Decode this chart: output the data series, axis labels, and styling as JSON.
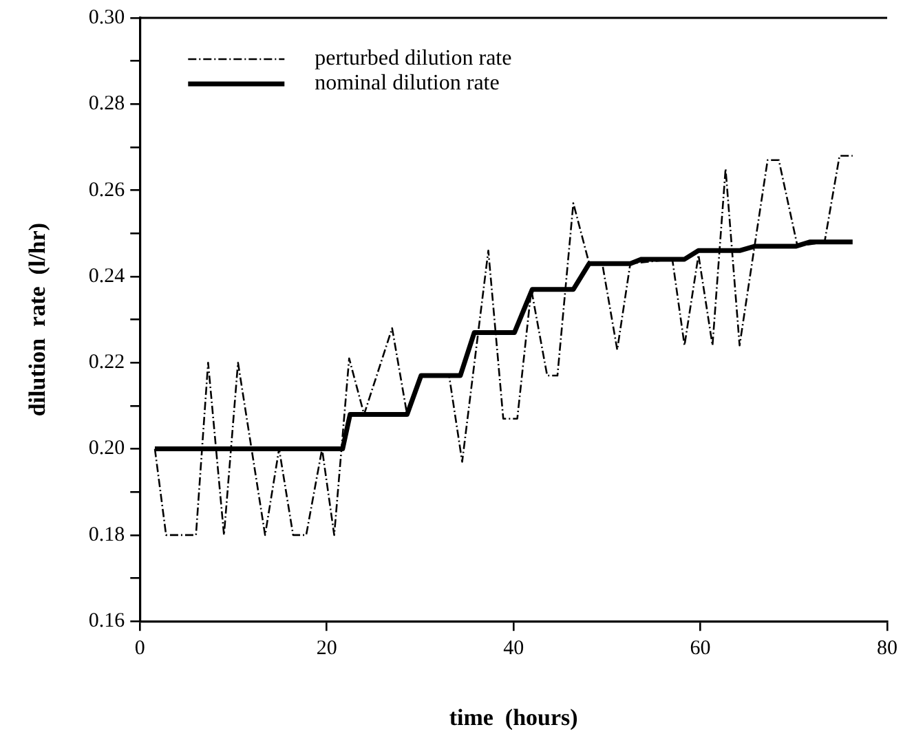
{
  "chart_data": {
    "type": "line",
    "xlabel": "time  (hours)",
    "ylabel": "dilution  rate  (l/hr)",
    "xlim": [
      0,
      80
    ],
    "xticks": [
      0,
      20,
      40,
      60,
      80
    ],
    "ylim": [
      0.16,
      0.3
    ],
    "yticks": [
      {
        "value": 0.16,
        "label": "0.16"
      },
      {
        "value": 0.17,
        "label": null
      },
      {
        "value": 0.18,
        "label": "0.18"
      },
      {
        "value": 0.19,
        "label": null
      },
      {
        "value": 0.2,
        "label": "0.20"
      },
      {
        "value": 0.21,
        "label": null
      },
      {
        "value": 0.22,
        "label": "0.22"
      },
      {
        "value": 0.23,
        "label": null
      },
      {
        "value": 0.24,
        "label": "0.24"
      },
      {
        "value": 0.25,
        "label": null
      },
      {
        "value": 0.26,
        "label": "0.26"
      },
      {
        "value": 0.27,
        "label": null
      },
      {
        "value": 0.28,
        "label": "0.28"
      },
      {
        "value": 0.29,
        "label": null
      },
      {
        "value": 0.3,
        "label": "0.30"
      }
    ],
    "grid": false,
    "legend": "top left",
    "marker": "none",
    "series": [
      {
        "name": "perturbed dilution rate",
        "color": "#000000",
        "line_style": "dashed",
        "x": [
          1.6,
          2.8,
          6.0,
          7.3,
          9.0,
          10.5,
          13.4,
          14.9,
          16.4,
          17.8,
          19.5,
          20.8,
          22.4,
          24.0,
          27.0,
          28.6,
          30.1,
          33.1,
          34.5,
          37.3,
          38.9,
          40.4,
          41.9,
          43.6,
          44.7,
          46.4,
          48.1,
          49.5,
          51.1,
          52.5,
          57.0,
          58.3,
          59.8,
          61.3,
          62.7,
          64.2,
          65.8,
          67.2,
          68.4,
          70.4,
          73.3,
          74.9,
          76.3
        ],
        "values": [
          0.2,
          0.18,
          0.18,
          0.22,
          0.18,
          0.22,
          0.18,
          0.2,
          0.18,
          0.18,
          0.2,
          0.18,
          0.221,
          0.208,
          0.228,
          0.208,
          0.217,
          0.217,
          0.197,
          0.246,
          0.207,
          0.207,
          0.237,
          0.217,
          0.217,
          0.257,
          0.243,
          0.243,
          0.223,
          0.243,
          0.244,
          0.224,
          0.245,
          0.224,
          0.265,
          0.224,
          0.247,
          0.267,
          0.267,
          0.247,
          0.248,
          0.268,
          0.268
        ]
      },
      {
        "name": "nominal dilution rate",
        "color": "#000000",
        "line_style": "solid",
        "x": [
          1.6,
          21.7,
          22.5,
          28.6,
          30.1,
          34.3,
          35.8,
          40.1,
          42.0,
          46.4,
          48.1,
          52.5,
          53.7,
          58.3,
          59.8,
          64.2,
          65.8,
          70.2,
          71.7,
          76.3
        ],
        "values": [
          0.2,
          0.2,
          0.208,
          0.208,
          0.217,
          0.217,
          0.227,
          0.227,
          0.237,
          0.237,
          0.243,
          0.243,
          0.244,
          0.244,
          0.246,
          0.246,
          0.247,
          0.247,
          0.248,
          0.248
        ]
      }
    ]
  }
}
